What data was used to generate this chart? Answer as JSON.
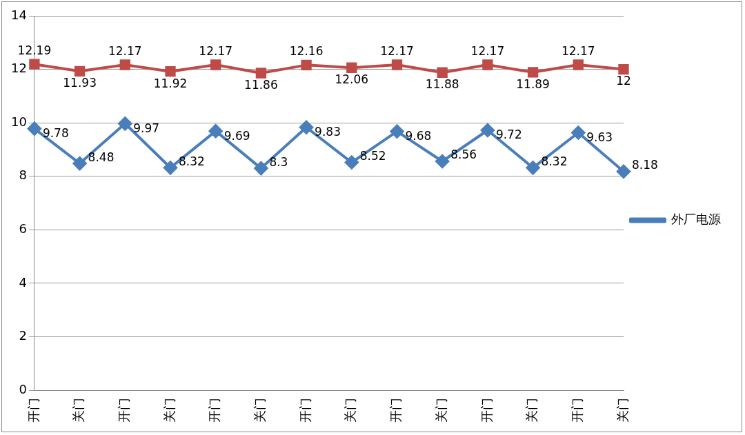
{
  "chart_data": {
    "type": "line",
    "categories": [
      "开门",
      "关门",
      "开门",
      "关门",
      "开门",
      "关门",
      "开门",
      "关门",
      "开门",
      "关门",
      "开门",
      "关门",
      "开门",
      "关门"
    ],
    "series": [
      {
        "name": "外厂电源",
        "color": "#4a7ebb",
        "marker": "diamond",
        "values": [
          9.78,
          8.48,
          9.97,
          8.32,
          9.69,
          8.3,
          9.83,
          8.52,
          9.68,
          8.56,
          9.72,
          8.32,
          9.63,
          8.18
        ]
      },
      {
        "color": "#be4b48",
        "marker": "square",
        "values": [
          12.19,
          11.93,
          12.17,
          11.92,
          12.17,
          11.86,
          12.16,
          12.06,
          12.17,
          11.88,
          12.17,
          11.89,
          12.17,
          12
        ]
      }
    ],
    "ylim": [
      0,
      14
    ],
    "yticks": [
      0,
      2,
      4,
      6,
      8,
      10,
      12,
      14
    ],
    "grid": "y",
    "legend": "right",
    "data_labels": true
  }
}
